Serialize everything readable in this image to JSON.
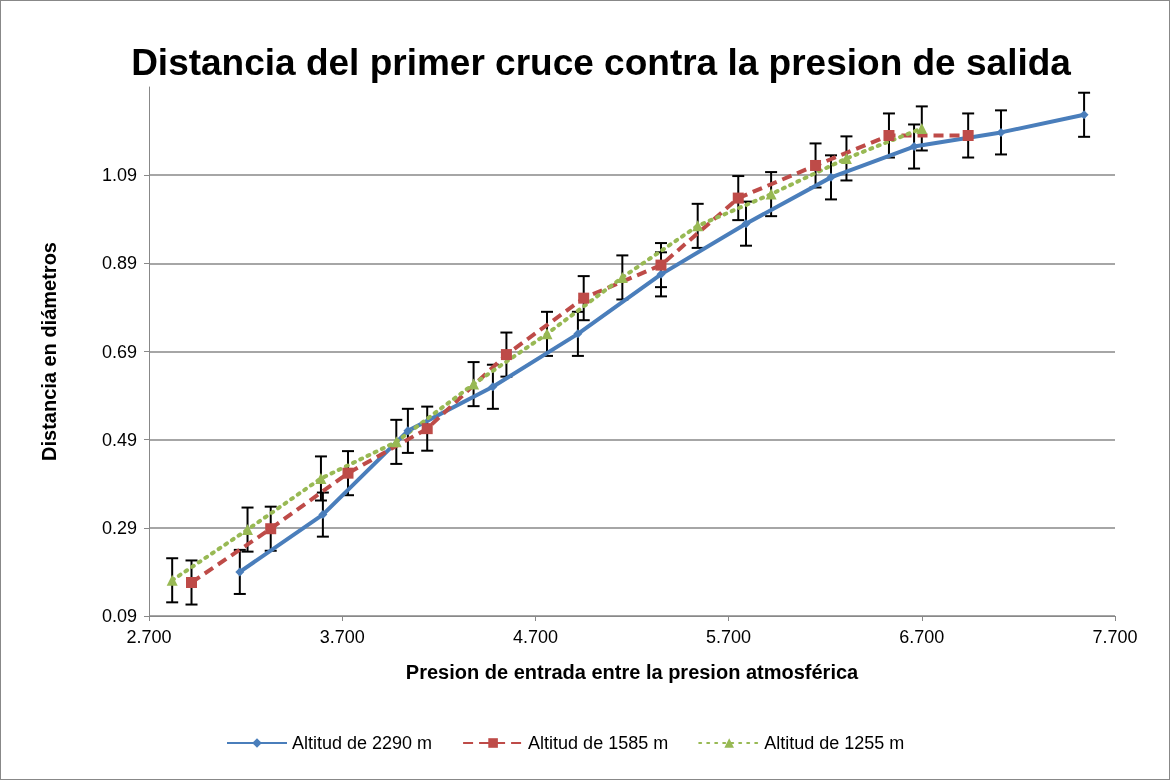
{
  "chart_data": {
    "type": "line",
    "title": "Distancia del primer cruce contra la presion de salida",
    "xlabel": "Presion de entrada entre la presion atmosférica",
    "ylabel": "Distancia en diámetros",
    "xlim": [
      2.7,
      7.7
    ],
    "xticks": [
      {
        "value": 2.7,
        "label": "2.700"
      },
      {
        "value": 3.7,
        "label": "3.700"
      },
      {
        "value": 4.7,
        "label": "4.700"
      },
      {
        "value": 5.7,
        "label": "5.700"
      },
      {
        "value": 6.7,
        "label": "6.700"
      },
      {
        "value": 7.7,
        "label": "7.700"
      }
    ],
    "ylim": [
      0.09,
      1.29
    ],
    "yticks": [
      0.09,
      0.29,
      0.49,
      0.69,
      0.89,
      1.09
    ],
    "grid": "y",
    "legend": "bottom",
    "series": [
      {
        "name": "Altitud de 2290 m",
        "color": "#4a7ebb",
        "marker": "diamond",
        "line_style": "solid",
        "x": [
          3.17,
          3.6,
          4.04,
          4.48,
          4.92,
          5.35,
          5.79,
          6.23,
          6.66,
          7.11,
          7.54
        ],
        "values": [
          0.19,
          0.32,
          0.51,
          0.61,
          0.73,
          0.865,
          0.98,
          1.085,
          1.155,
          1.187,
          1.227
        ],
        "errors": [
          0.05,
          0.05,
          0.05,
          0.05,
          0.05,
          0.05,
          0.05,
          0.05,
          0.05,
          0.05,
          0.05
        ]
      },
      {
        "name": "Altitud de 1585 m",
        "color": "#be4b48",
        "marker": "square",
        "line_style": "dashed",
        "x": [
          2.92,
          3.33,
          3.73,
          4.14,
          4.55,
          4.95,
          5.35,
          5.75,
          6.15,
          6.53,
          6.94
        ],
        "values": [
          0.166,
          0.288,
          0.414,
          0.515,
          0.683,
          0.811,
          0.886,
          1.038,
          1.112,
          1.18,
          1.18
        ],
        "errors": [
          0.05,
          0.05,
          0.05,
          0.05,
          0.05,
          0.05,
          0.05,
          0.05,
          0.05,
          0.05,
          0.05
        ]
      },
      {
        "name": "Altitud de 1255 m",
        "color": "#98b954",
        "marker": "triangle",
        "line_style": "dotted",
        "x": [
          2.82,
          3.21,
          3.59,
          3.98,
          4.38,
          4.76,
          5.15,
          5.54,
          5.92,
          6.31,
          6.7
        ],
        "values": [
          0.171,
          0.286,
          0.402,
          0.485,
          0.616,
          0.73,
          0.858,
          0.975,
          1.047,
          1.128,
          1.196
        ],
        "errors": [
          0.05,
          0.05,
          0.05,
          0.05,
          0.05,
          0.05,
          0.05,
          0.05,
          0.05,
          0.05,
          0.05
        ]
      }
    ]
  }
}
